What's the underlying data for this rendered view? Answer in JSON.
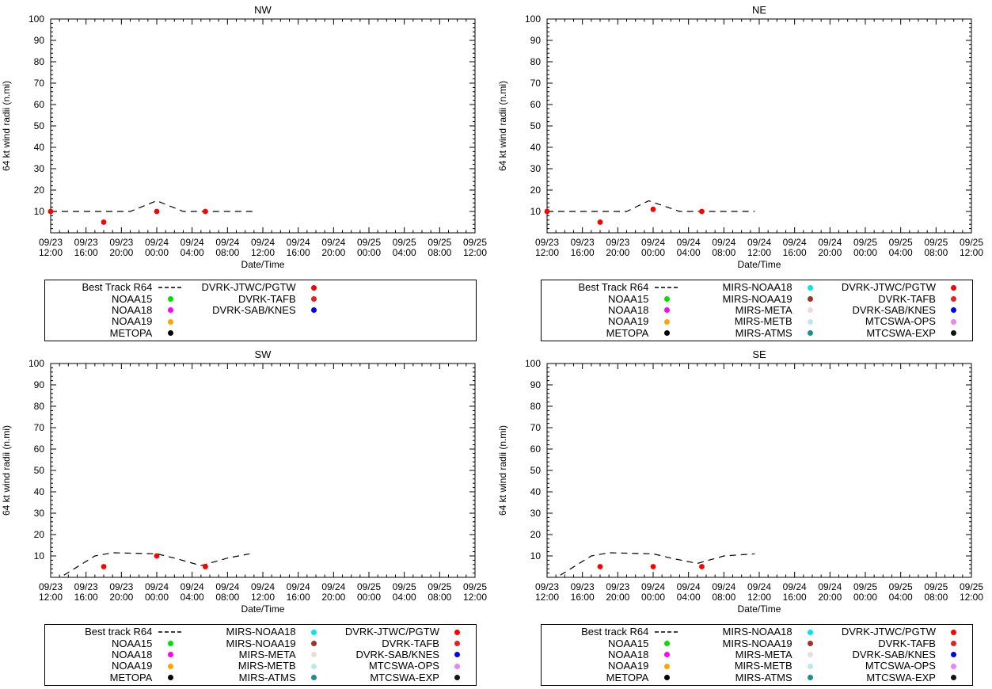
{
  "page": {
    "background": "#ffffff"
  },
  "chart_data": [
    {
      "type": "line",
      "title": "NW",
      "xlabel": "Date/Time",
      "ylabel": "64 kt wind radii (n.mi)",
      "ylim": [
        0,
        100
      ],
      "yticks": [
        10,
        20,
        30,
        40,
        50,
        60,
        70,
        80,
        90,
        100
      ],
      "y_minor_step": 2,
      "x_hours_range": [
        0,
        48
      ],
      "x_major_step_hours": 4,
      "x_minor_step_hours": 1,
      "grid": "off",
      "legend_position": "below",
      "xtick_labels": [
        [
          "09/23",
          "12:00"
        ],
        [
          "09/23",
          "16:00"
        ],
        [
          "09/23",
          "20:00"
        ],
        [
          "09/24",
          "00:00"
        ],
        [
          "09/24",
          "04:00"
        ],
        [
          "09/24",
          "08:00"
        ],
        [
          "09/24",
          "12:00"
        ],
        [
          "09/24",
          "16:00"
        ],
        [
          "09/24",
          "20:00"
        ],
        [
          "09/25",
          "00:00"
        ],
        [
          "09/25",
          "04:00"
        ],
        [
          "09/25",
          "08:00"
        ],
        [
          "09/25",
          "12:00"
        ]
      ],
      "series": [
        {
          "name": "Best Track R64",
          "style": "dashed_line",
          "color": "#000000",
          "points": [
            [
              0,
              10
            ],
            [
              9,
              10
            ],
            [
              12,
              15
            ],
            [
              15,
              10
            ],
            [
              23,
              10
            ]
          ]
        },
        {
          "name": "DVRK-JTWC/PGTW",
          "style": "scatter",
          "color": "#ff0000",
          "points": [
            [
              0,
              10
            ],
            [
              6,
              5
            ],
            [
              12,
              10
            ],
            [
              17.5,
              10
            ]
          ]
        }
      ],
      "legend_columns": [
        [
          {
            "label": "Best Track R64",
            "marker": "dash",
            "color": "#000000"
          },
          {
            "label": "NOAA15",
            "marker": "dot",
            "color": "#00e000"
          },
          {
            "label": "NOAA18",
            "marker": "dot",
            "color": "#ff00ff"
          },
          {
            "label": "NOAA19",
            "marker": "dot",
            "color": "#ffa500"
          },
          {
            "label": "METOPA",
            "marker": "dot",
            "color": "#000000"
          }
        ],
        [
          {
            "label": "DVRK-JTWC/PGTW",
            "marker": "dot",
            "color": "#ff0000"
          },
          {
            "label": "DVRK-TAFB",
            "marker": "dot",
            "color": "#e22222"
          },
          {
            "label": "DVRK-SAB/KNES",
            "marker": "dot",
            "color": "#0000ff"
          }
        ],
        []
      ]
    },
    {
      "type": "line",
      "title": "NE",
      "xlabel": "Date/Time",
      "ylabel": "64 kt wind radii (n.mi)",
      "ylim": [
        0,
        100
      ],
      "yticks": [
        10,
        20,
        30,
        40,
        50,
        60,
        70,
        80,
        90,
        100
      ],
      "y_minor_step": 2,
      "x_hours_range": [
        0,
        48
      ],
      "x_major_step_hours": 4,
      "x_minor_step_hours": 1,
      "grid": "off",
      "legend_position": "below",
      "xtick_labels": [
        [
          "09/23",
          "12:00"
        ],
        [
          "09/23",
          "16:00"
        ],
        [
          "09/23",
          "20:00"
        ],
        [
          "09/24",
          "00:00"
        ],
        [
          "09/24",
          "04:00"
        ],
        [
          "09/24",
          "08:00"
        ],
        [
          "09/24",
          "12:00"
        ],
        [
          "09/24",
          "16:00"
        ],
        [
          "09/24",
          "20:00"
        ],
        [
          "09/25",
          "00:00"
        ],
        [
          "09/25",
          "04:00"
        ],
        [
          "09/25",
          "08:00"
        ],
        [
          "09/25",
          "12:00"
        ]
      ],
      "series": [
        {
          "name": "Best Track R64",
          "style": "dashed_line",
          "color": "#000000",
          "points": [
            [
              0,
              10
            ],
            [
              9,
              10
            ],
            [
              11.5,
              15
            ],
            [
              15,
              10
            ],
            [
              23.5,
              10
            ]
          ]
        },
        {
          "name": "DVRK-JTWC/PGTW",
          "style": "scatter",
          "color": "#ff0000",
          "points": [
            [
              0,
              10
            ],
            [
              6,
              5
            ],
            [
              12,
              11
            ],
            [
              17.5,
              10
            ]
          ]
        }
      ],
      "legend_columns": [
        [
          {
            "label": "Best Track R64",
            "marker": "dash",
            "color": "#000000"
          },
          {
            "label": "NOAA15",
            "marker": "dot",
            "color": "#00e000"
          },
          {
            "label": "NOAA18",
            "marker": "dot",
            "color": "#ff00ff"
          },
          {
            "label": "NOAA19",
            "marker": "dot",
            "color": "#ffa500"
          },
          {
            "label": "METOPA",
            "marker": "dot",
            "color": "#000000"
          }
        ],
        [
          {
            "label": "MIRS-NOAA18",
            "marker": "dot",
            "color": "#00e5ee"
          },
          {
            "label": "MIRS-NOAA19",
            "marker": "dot",
            "color": "#9c3428"
          },
          {
            "label": "MIRS-META",
            "marker": "dot",
            "color": "#e8dcdc"
          },
          {
            "label": "MIRS-METB",
            "marker": "dot",
            "color": "#bfe6e8"
          },
          {
            "label": "MIRS-ATMS",
            "marker": "dot",
            "color": "#1e8f8f"
          }
        ],
        [
          {
            "label": "DVRK-JTWC/PGTW",
            "marker": "dot",
            "color": "#ff0000"
          },
          {
            "label": "DVRK-TAFB",
            "marker": "dot",
            "color": "#e22222"
          },
          {
            "label": "DVRK-SAB/KNES",
            "marker": "dot",
            "color": "#0000ff"
          },
          {
            "label": "MTCSWA-OPS",
            "marker": "dot",
            "color": "#ee82ee"
          },
          {
            "label": "MTCSWA-EXP",
            "marker": "dot",
            "color": "#141414"
          }
        ]
      ]
    },
    {
      "type": "line",
      "title": "SW",
      "xlabel": "Date/Time",
      "ylabel": "64 kt wind radii (n.mi)",
      "ylim": [
        0,
        100
      ],
      "yticks": [
        10,
        20,
        30,
        40,
        50,
        60,
        70,
        80,
        90,
        100
      ],
      "y_minor_step": 2,
      "x_hours_range": [
        0,
        48
      ],
      "x_major_step_hours": 4,
      "x_minor_step_hours": 1,
      "grid": "off",
      "legend_position": "below",
      "xtick_labels": [
        [
          "09/23",
          "12:00"
        ],
        [
          "09/23",
          "16:00"
        ],
        [
          "09/23",
          "20:00"
        ],
        [
          "09/24",
          "00:00"
        ],
        [
          "09/24",
          "04:00"
        ],
        [
          "09/24",
          "08:00"
        ],
        [
          "09/24",
          "12:00"
        ],
        [
          "09/24",
          "16:00"
        ],
        [
          "09/24",
          "20:00"
        ],
        [
          "09/25",
          "00:00"
        ],
        [
          "09/25",
          "04:00"
        ],
        [
          "09/25",
          "08:00"
        ],
        [
          "09/25",
          "12:00"
        ]
      ],
      "series": [
        {
          "name": "Best track R64",
          "style": "dashed_line",
          "color": "#000000",
          "points": [
            [
              1.5,
              1
            ],
            [
              5,
              10
            ],
            [
              7,
              11.5
            ],
            [
              12,
              11
            ],
            [
              14,
              9
            ],
            [
              17,
              5.5
            ],
            [
              20,
              9
            ],
            [
              22.5,
              11
            ]
          ]
        },
        {
          "name": "DVRK-JTWC/PGTW",
          "style": "scatter",
          "color": "#ff0000",
          "points": [
            [
              6,
              5
            ],
            [
              12,
              10
            ],
            [
              17.5,
              5
            ]
          ]
        }
      ],
      "legend_columns": [
        [
          {
            "label": "Best track R64",
            "marker": "dash",
            "color": "#000000"
          },
          {
            "label": "NOAA15",
            "marker": "dot",
            "color": "#00e000"
          },
          {
            "label": "NOAA18",
            "marker": "dot",
            "color": "#ff00ff"
          },
          {
            "label": "NOAA19",
            "marker": "dot",
            "color": "#ffa500"
          },
          {
            "label": "METOPA",
            "marker": "dot",
            "color": "#000000"
          }
        ],
        [
          {
            "label": "MIRS-NOAA18",
            "marker": "dot",
            "color": "#00e5ee"
          },
          {
            "label": "MIRS-NOAA19",
            "marker": "dot",
            "color": "#9c3428"
          },
          {
            "label": "MIRS-META",
            "marker": "dot",
            "color": "#e8dcdc"
          },
          {
            "label": "MIRS-METB",
            "marker": "dot",
            "color": "#bfe6e8"
          },
          {
            "label": "MIRS-ATMS",
            "marker": "dot",
            "color": "#1e8f8f"
          }
        ],
        [
          {
            "label": "DVRK-JTWC/PGTW",
            "marker": "dot",
            "color": "#ff0000"
          },
          {
            "label": "DVRK-TAFB",
            "marker": "dot",
            "color": "#e22222"
          },
          {
            "label": "DVRK-SAB/KNES",
            "marker": "dot",
            "color": "#0000ff"
          },
          {
            "label": "MTCSWA-OPS",
            "marker": "dot",
            "color": "#ee82ee"
          },
          {
            "label": "MTCSWA-EXP",
            "marker": "dot",
            "color": "#141414"
          }
        ]
      ]
    },
    {
      "type": "line",
      "title": "SE",
      "xlabel": "Date/Time",
      "ylabel": "64 kt wind radii (n.mi)",
      "ylim": [
        0,
        100
      ],
      "yticks": [
        10,
        20,
        30,
        40,
        50,
        60,
        70,
        80,
        90,
        100
      ],
      "y_minor_step": 2,
      "x_hours_range": [
        0,
        48
      ],
      "x_major_step_hours": 4,
      "x_minor_step_hours": 1,
      "grid": "off",
      "legend_position": "below",
      "xtick_labels": [
        [
          "09/23",
          "12:00"
        ],
        [
          "09/23",
          "16:00"
        ],
        [
          "09/23",
          "20:00"
        ],
        [
          "09/24",
          "00:00"
        ],
        [
          "09/24",
          "04:00"
        ],
        [
          "09/24",
          "08:00"
        ],
        [
          "09/24",
          "12:00"
        ],
        [
          "09/24",
          "16:00"
        ],
        [
          "09/24",
          "20:00"
        ],
        [
          "09/25",
          "00:00"
        ],
        [
          "09/25",
          "04:00"
        ],
        [
          "09/25",
          "08:00"
        ],
        [
          "09/25",
          "12:00"
        ]
      ],
      "series": [
        {
          "name": "Best track R64",
          "style": "dashed_line",
          "color": "#000000",
          "points": [
            [
              1.5,
              1
            ],
            [
              5,
              10
            ],
            [
              7,
              11.5
            ],
            [
              12,
              11
            ],
            [
              14,
              9
            ],
            [
              17,
              6.5
            ],
            [
              20,
              10
            ],
            [
              23.5,
              11
            ]
          ]
        },
        {
          "name": "DVRK-JTWC/PGTW",
          "style": "scatter",
          "color": "#ff0000",
          "points": [
            [
              6,
              5
            ],
            [
              12,
              5
            ],
            [
              17.5,
              5
            ]
          ]
        }
      ],
      "legend_columns": [
        [
          {
            "label": "Best track R64",
            "marker": "dash",
            "color": "#000000"
          },
          {
            "label": "NOAA15",
            "marker": "dot",
            "color": "#00e000"
          },
          {
            "label": "NOAA18",
            "marker": "dot",
            "color": "#ff00ff"
          },
          {
            "label": "NOAA19",
            "marker": "dot",
            "color": "#ffa500"
          },
          {
            "label": "METOPA",
            "marker": "dot",
            "color": "#000000"
          }
        ],
        [
          {
            "label": "MIRS-NOAA18",
            "marker": "dot",
            "color": "#00e5ee"
          },
          {
            "label": "MIRS-NOAA19",
            "marker": "dot",
            "color": "#9c3428"
          },
          {
            "label": "MIRS-META",
            "marker": "dot",
            "color": "#e8dcdc"
          },
          {
            "label": "MIRS-METB",
            "marker": "dot",
            "color": "#bfe6e8"
          },
          {
            "label": "MIRS-ATMS",
            "marker": "dot",
            "color": "#1e8f8f"
          }
        ],
        [
          {
            "label": "DVRK-JTWC/PGTW",
            "marker": "dot",
            "color": "#ff0000"
          },
          {
            "label": "DVRK-TAFB",
            "marker": "dot",
            "color": "#e22222"
          },
          {
            "label": "DVRK-SAB/KNES",
            "marker": "dot",
            "color": "#0000ff"
          },
          {
            "label": "MTCSWA-OPS",
            "marker": "dot",
            "color": "#ee82ee"
          },
          {
            "label": "MTCSWA-EXP",
            "marker": "dot",
            "color": "#141414"
          }
        ]
      ]
    }
  ]
}
